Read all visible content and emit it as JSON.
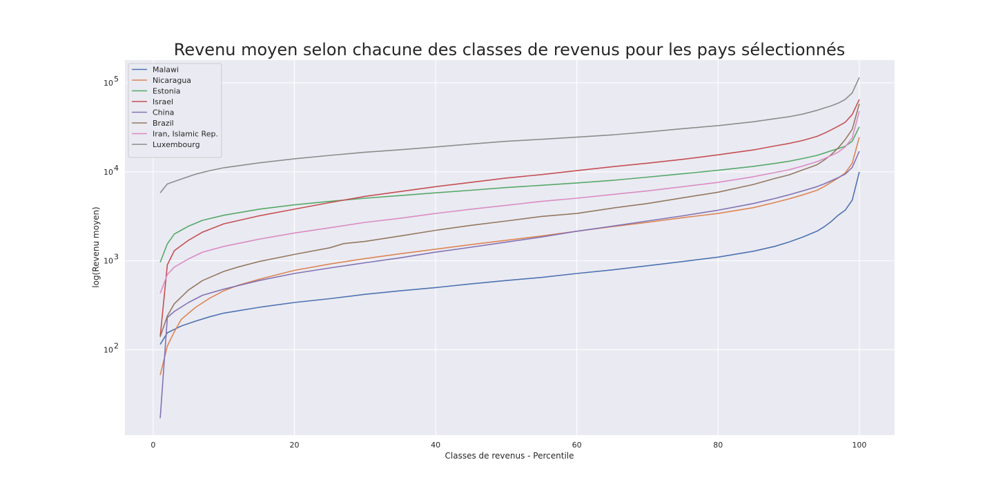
{
  "chart_data": {
    "type": "line",
    "title": "Revenu moyen selon chacune des classes de revenus pour les pays sélectionnés",
    "xlabel": "Classes de revenus - Percentile",
    "ylabel": "log(Revenu moyen)",
    "yscale": "log",
    "xlim": [
      -4,
      105
    ],
    "ylim": [
      11,
      180000
    ],
    "x_ticks": [
      0,
      20,
      40,
      60,
      80,
      100
    ],
    "y_ticks": [
      {
        "value": 100,
        "base": "10",
        "exp": "2"
      },
      {
        "value": 1000,
        "base": "10",
        "exp": "3"
      },
      {
        "value": 10000,
        "base": "10",
        "exp": "4"
      },
      {
        "value": 100000,
        "base": "10",
        "exp": "5"
      }
    ],
    "grid": true,
    "legend_position": "top-left",
    "series": [
      {
        "name": "Malawi",
        "color": "#4c72b0",
        "points": [
          [
            1,
            115
          ],
          [
            2,
            155
          ],
          [
            4,
            185
          ],
          [
            6,
            210
          ],
          [
            8,
            235
          ],
          [
            10,
            258
          ],
          [
            15,
            300
          ],
          [
            20,
            340
          ],
          [
            25,
            375
          ],
          [
            30,
            420
          ],
          [
            35,
            460
          ],
          [
            40,
            500
          ],
          [
            45,
            550
          ],
          [
            50,
            600
          ],
          [
            55,
            650
          ],
          [
            60,
            720
          ],
          [
            65,
            790
          ],
          [
            70,
            880
          ],
          [
            75,
            980
          ],
          [
            80,
            1100
          ],
          [
            85,
            1280
          ],
          [
            88,
            1450
          ],
          [
            90,
            1620
          ],
          [
            92,
            1850
          ],
          [
            94,
            2150
          ],
          [
            95,
            2400
          ],
          [
            96,
            2750
          ],
          [
            97,
            3250
          ],
          [
            98,
            3700
          ],
          [
            99,
            4800
          ],
          [
            100,
            10000
          ]
        ]
      },
      {
        "name": "Nicaragua",
        "color": "#dd8452",
        "points": [
          [
            1,
            52
          ],
          [
            2,
            110
          ],
          [
            3,
            160
          ],
          [
            4,
            220
          ],
          [
            6,
            300
          ],
          [
            8,
            380
          ],
          [
            10,
            460
          ],
          [
            12,
            530
          ],
          [
            15,
            620
          ],
          [
            20,
            780
          ],
          [
            25,
            920
          ],
          [
            30,
            1060
          ],
          [
            35,
            1200
          ],
          [
            40,
            1350
          ],
          [
            45,
            1520
          ],
          [
            50,
            1700
          ],
          [
            55,
            1900
          ],
          [
            60,
            2150
          ],
          [
            65,
            2420
          ],
          [
            70,
            2700
          ],
          [
            75,
            3050
          ],
          [
            80,
            3400
          ],
          [
            85,
            3950
          ],
          [
            88,
            4500
          ],
          [
            90,
            4950
          ],
          [
            92,
            5500
          ],
          [
            94,
            6200
          ],
          [
            95,
            6800
          ],
          [
            96,
            7600
          ],
          [
            97,
            8500
          ],
          [
            98,
            9700
          ],
          [
            99,
            12500
          ],
          [
            100,
            24500
          ]
        ]
      },
      {
        "name": "Estonia",
        "color": "#55a868",
        "points": [
          [
            1,
            960
          ],
          [
            2,
            1550
          ],
          [
            3,
            2000
          ],
          [
            5,
            2450
          ],
          [
            7,
            2850
          ],
          [
            10,
            3250
          ],
          [
            15,
            3800
          ],
          [
            20,
            4250
          ],
          [
            25,
            4650
          ],
          [
            30,
            5050
          ],
          [
            35,
            5400
          ],
          [
            40,
            5800
          ],
          [
            45,
            6200
          ],
          [
            50,
            6650
          ],
          [
            55,
            7050
          ],
          [
            60,
            7500
          ],
          [
            65,
            8000
          ],
          [
            70,
            8700
          ],
          [
            75,
            9500
          ],
          [
            80,
            10400
          ],
          [
            85,
            11500
          ],
          [
            88,
            12400
          ],
          [
            90,
            13100
          ],
          [
            92,
            14100
          ],
          [
            94,
            15300
          ],
          [
            95,
            16200
          ],
          [
            96,
            17200
          ],
          [
            97,
            18200
          ],
          [
            98,
            19400
          ],
          [
            99,
            22000
          ],
          [
            100,
            32000
          ]
        ]
      },
      {
        "name": "Israel",
        "color": "#c44e52",
        "points": [
          [
            1,
            140
          ],
          [
            2,
            900
          ],
          [
            3,
            1300
          ],
          [
            5,
            1700
          ],
          [
            7,
            2100
          ],
          [
            10,
            2600
          ],
          [
            15,
            3200
          ],
          [
            20,
            3800
          ],
          [
            25,
            4500
          ],
          [
            30,
            5300
          ],
          [
            35,
            6000
          ],
          [
            40,
            6800
          ],
          [
            45,
            7600
          ],
          [
            50,
            8500
          ],
          [
            55,
            9300
          ],
          [
            60,
            10300
          ],
          [
            65,
            11400
          ],
          [
            70,
            12500
          ],
          [
            75,
            13800
          ],
          [
            80,
            15500
          ],
          [
            85,
            17600
          ],
          [
            88,
            19500
          ],
          [
            90,
            20800
          ],
          [
            92,
            22500
          ],
          [
            94,
            25000
          ],
          [
            95,
            27000
          ],
          [
            96,
            29500
          ],
          [
            97,
            32500
          ],
          [
            98,
            36000
          ],
          [
            99,
            44000
          ],
          [
            100,
            65000
          ]
        ]
      },
      {
        "name": "China",
        "color": "#8172b3",
        "points": [
          [
            1,
            17
          ],
          [
            2,
            230
          ],
          [
            3,
            270
          ],
          [
            5,
            340
          ],
          [
            7,
            410
          ],
          [
            10,
            480
          ],
          [
            15,
            600
          ],
          [
            20,
            720
          ],
          [
            25,
            830
          ],
          [
            30,
            950
          ],
          [
            35,
            1080
          ],
          [
            40,
            1250
          ],
          [
            45,
            1420
          ],
          [
            50,
            1620
          ],
          [
            55,
            1850
          ],
          [
            60,
            2150
          ],
          [
            65,
            2450
          ],
          [
            70,
            2800
          ],
          [
            75,
            3200
          ],
          [
            80,
            3700
          ],
          [
            85,
            4400
          ],
          [
            88,
            5000
          ],
          [
            90,
            5500
          ],
          [
            92,
            6100
          ],
          [
            94,
            6800
          ],
          [
            95,
            7300
          ],
          [
            96,
            7900
          ],
          [
            97,
            8600
          ],
          [
            98,
            9400
          ],
          [
            99,
            11200
          ],
          [
            100,
            17000
          ]
        ]
      },
      {
        "name": "Brazil",
        "color": "#937860",
        "points": [
          [
            1,
            140
          ],
          [
            2,
            240
          ],
          [
            3,
            330
          ],
          [
            5,
            470
          ],
          [
            7,
            600
          ],
          [
            10,
            760
          ],
          [
            12,
            850
          ],
          [
            15,
            980
          ],
          [
            20,
            1180
          ],
          [
            25,
            1400
          ],
          [
            27,
            1560
          ],
          [
            30,
            1650
          ],
          [
            35,
            1900
          ],
          [
            40,
            2200
          ],
          [
            45,
            2500
          ],
          [
            50,
            2800
          ],
          [
            55,
            3150
          ],
          [
            60,
            3400
          ],
          [
            65,
            3900
          ],
          [
            70,
            4400
          ],
          [
            75,
            5100
          ],
          [
            80,
            5900
          ],
          [
            85,
            7200
          ],
          [
            88,
            8400
          ],
          [
            90,
            9200
          ],
          [
            92,
            10500
          ],
          [
            94,
            12000
          ],
          [
            95,
            13500
          ],
          [
            96,
            15500
          ],
          [
            97,
            18500
          ],
          [
            98,
            23000
          ],
          [
            99,
            30000
          ],
          [
            100,
            58000
          ]
        ]
      },
      {
        "name": "Iran, Islamic Rep.",
        "color": "#da8bc3",
        "points": [
          [
            1,
            430
          ],
          [
            2,
            700
          ],
          [
            3,
            850
          ],
          [
            5,
            1050
          ],
          [
            7,
            1250
          ],
          [
            10,
            1450
          ],
          [
            15,
            1750
          ],
          [
            20,
            2050
          ],
          [
            25,
            2350
          ],
          [
            30,
            2700
          ],
          [
            35,
            3000
          ],
          [
            40,
            3400
          ],
          [
            45,
            3800
          ],
          [
            50,
            4200
          ],
          [
            55,
            4650
          ],
          [
            60,
            5050
          ],
          [
            65,
            5550
          ],
          [
            70,
            6100
          ],
          [
            75,
            6800
          ],
          [
            80,
            7600
          ],
          [
            85,
            8800
          ],
          [
            88,
            9800
          ],
          [
            90,
            10500
          ],
          [
            92,
            11600
          ],
          [
            94,
            13000
          ],
          [
            95,
            14000
          ],
          [
            96,
            15200
          ],
          [
            97,
            16600
          ],
          [
            98,
            19000
          ],
          [
            99,
            24000
          ],
          [
            100,
            48000
          ]
        ]
      },
      {
        "name": "Luxembourg",
        "color": "#8c8c8c",
        "points": [
          [
            1,
            5800
          ],
          [
            2,
            7300
          ],
          [
            4,
            8300
          ],
          [
            6,
            9400
          ],
          [
            8,
            10300
          ],
          [
            10,
            11100
          ],
          [
            15,
            12600
          ],
          [
            20,
            14000
          ],
          [
            25,
            15300
          ],
          [
            30,
            16600
          ],
          [
            35,
            17700
          ],
          [
            40,
            19000
          ],
          [
            45,
            20500
          ],
          [
            50,
            22000
          ],
          [
            55,
            23200
          ],
          [
            60,
            24500
          ],
          [
            65,
            26000
          ],
          [
            70,
            28000
          ],
          [
            75,
            30500
          ],
          [
            80,
            33000
          ],
          [
            85,
            36500
          ],
          [
            88,
            39500
          ],
          [
            90,
            41500
          ],
          [
            92,
            44500
          ],
          [
            94,
            49000
          ],
          [
            95,
            52000
          ],
          [
            96,
            55000
          ],
          [
            97,
            59000
          ],
          [
            98,
            65000
          ],
          [
            99,
            77000
          ],
          [
            100,
            115000
          ]
        ]
      }
    ]
  }
}
